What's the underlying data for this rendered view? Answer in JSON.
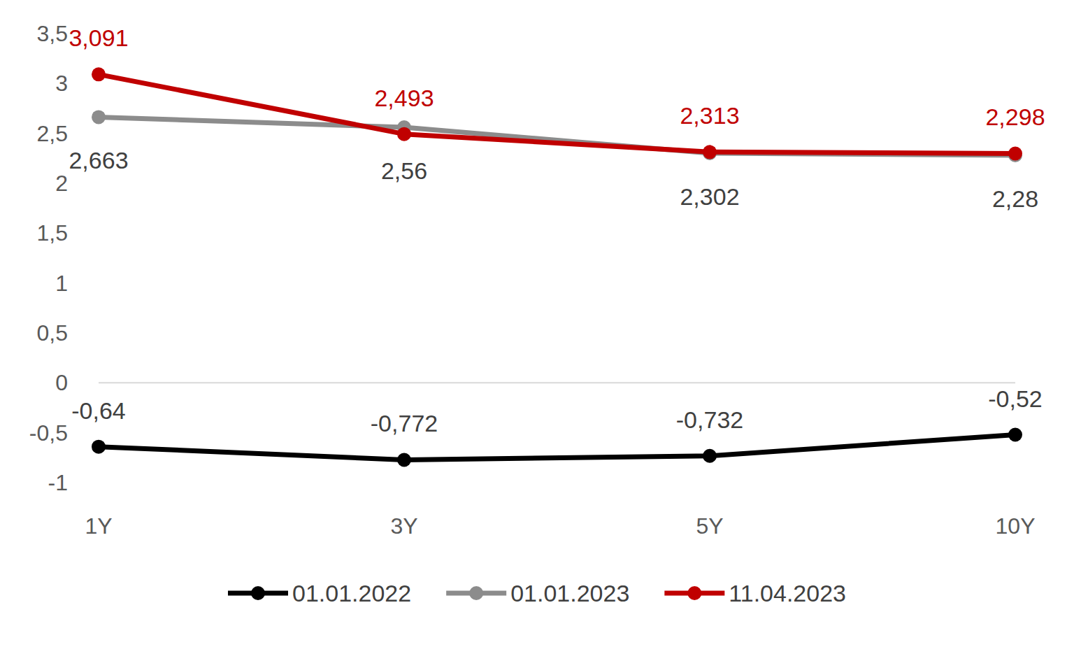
{
  "chart_data": {
    "type": "line",
    "categories": [
      "1Y",
      "3Y",
      "5Y",
      "10Y"
    ],
    "ylim": [
      -1,
      3.5
    ],
    "yticks": [
      -1,
      {
        "value": -0.5,
        "label": "-0,5"
      },
      0,
      {
        "value": 0.5,
        "label": "0,5"
      },
      1,
      {
        "value": 1.5,
        "label": "1,5"
      },
      2,
      {
        "value": 2.5,
        "label": "2,5"
      },
      3,
      {
        "value": 3.5,
        "label": "3,5"
      }
    ],
    "grid": false,
    "legend": "bottom",
    "data_labels": true,
    "marker": "circle",
    "series": [
      {
        "name": "01.01.2022",
        "color": "#000000",
        "values": [
          -0.64,
          -0.772,
          -0.732,
          -0.52
        ],
        "value_labels": [
          "-0,64",
          "-0,772",
          "-0,732",
          "-0,52"
        ]
      },
      {
        "name": "01.01.2023",
        "color": "#8c8c8c",
        "values": [
          2.663,
          2.56,
          2.302,
          2.28
        ],
        "value_labels": [
          "2,663",
          "2,56",
          "2,302",
          "2,28"
        ]
      },
      {
        "name": "11.04.2023",
        "color": "#c00000",
        "values": [
          3.091,
          2.493,
          2.313,
          2.298
        ],
        "value_labels": [
          "3,091",
          "2,493",
          "2,313",
          "2,298"
        ]
      }
    ]
  }
}
